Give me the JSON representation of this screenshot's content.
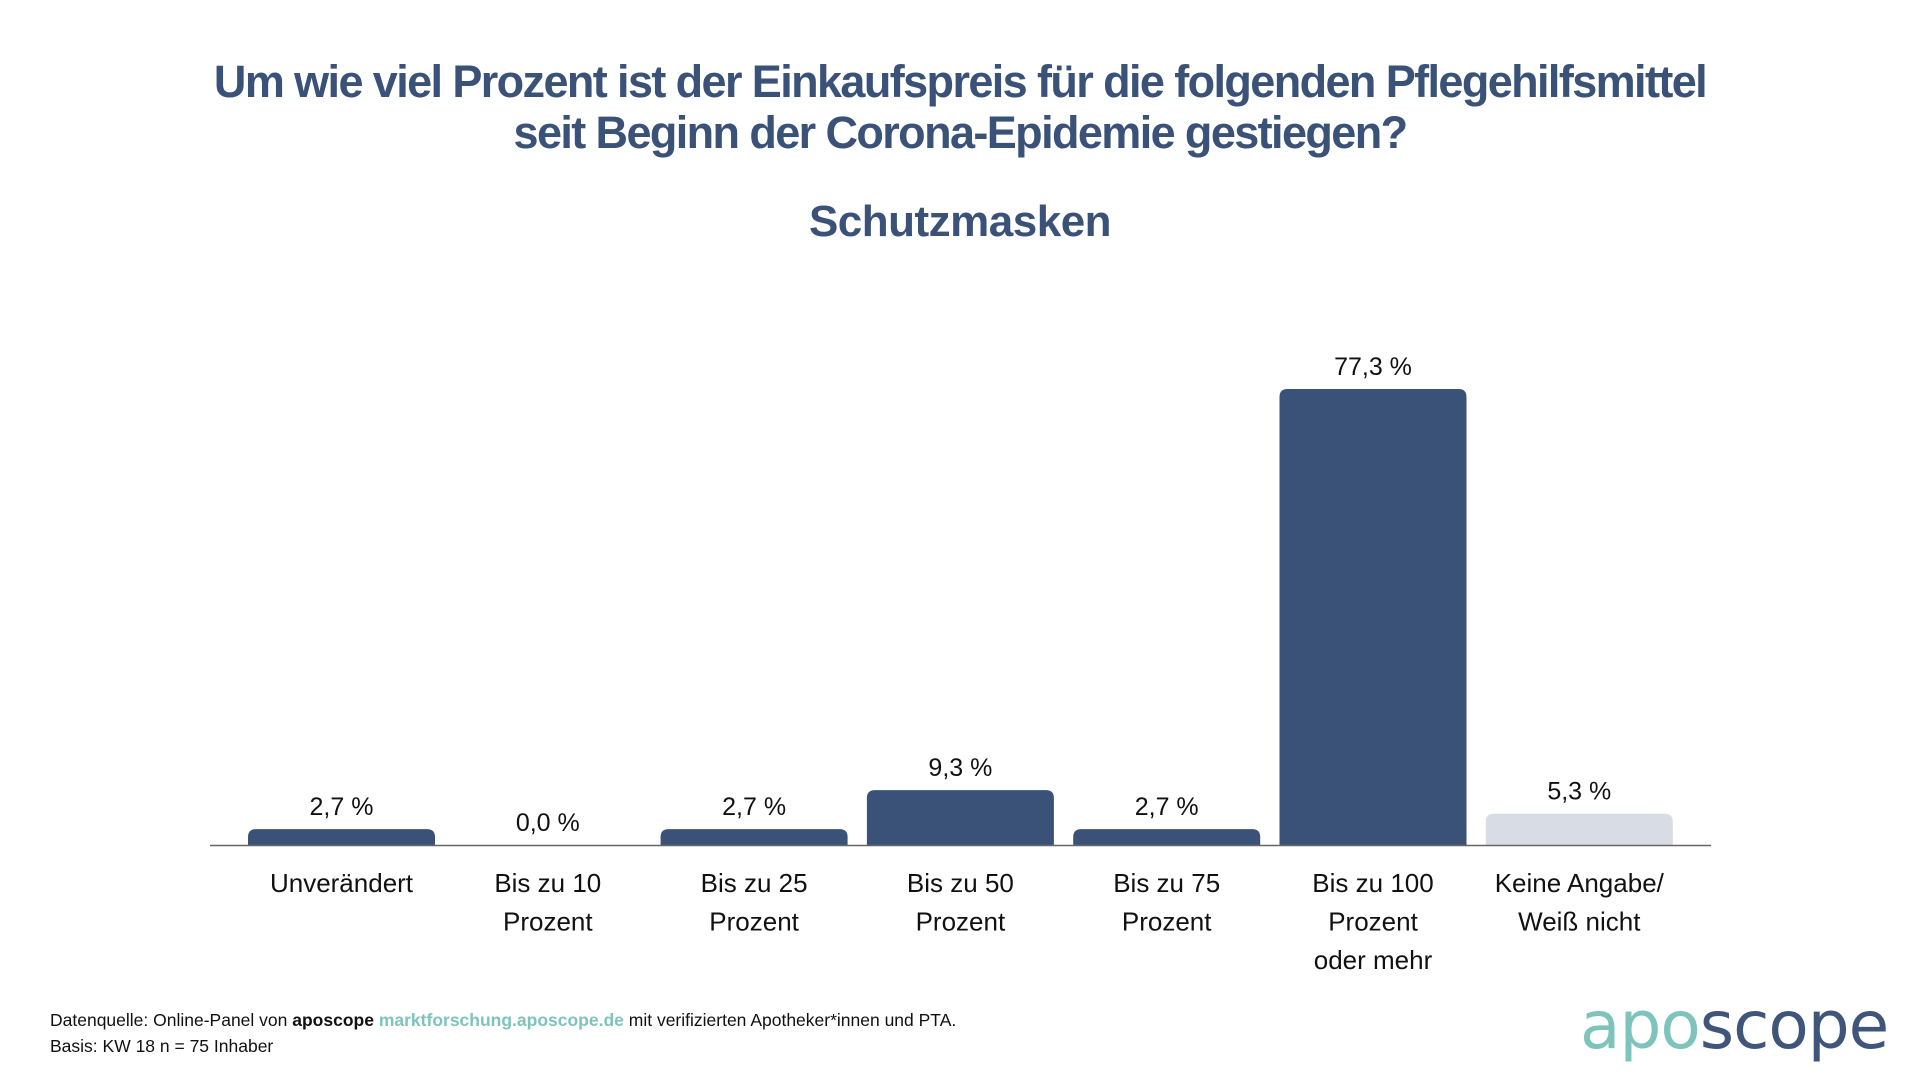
{
  "title_lines": [
    "Um wie viel Prozent ist der Einkaufspreis für die folgenden Pflegehilfsmittel",
    "seit Beginn der Corona-Epidemie gestiegen?"
  ],
  "subtitle": "Schutzmasken",
  "colors": {
    "primary": "#3a5277",
    "muted_bar": "#d8dce4",
    "accent_teal": "#7ec4bc",
    "axis": "#666666"
  },
  "chart_data": {
    "type": "bar",
    "title": "Um wie viel Prozent ist der Einkaufspreis für die folgenden Pflegehilfsmittel seit Beginn der Corona-Epidemie gestiegen?",
    "subtitle": "Schutzmasken",
    "xlabel": "",
    "ylabel": "",
    "ylim": [
      0,
      77.3
    ],
    "grid": false,
    "unit": "%",
    "categories": [
      [
        "Unverändert"
      ],
      [
        "Bis zu 10",
        "Prozent"
      ],
      [
        "Bis zu 25",
        "Prozent"
      ],
      [
        "Bis zu 50",
        "Prozent"
      ],
      [
        "Bis zu 75",
        "Prozent"
      ],
      [
        "Bis zu 100",
        "Prozent",
        "oder mehr"
      ],
      [
        "Keine Angabe/",
        "Weiß nicht"
      ]
    ],
    "values": [
      2.7,
      0.0,
      2.7,
      9.3,
      2.7,
      77.3,
      5.3
    ],
    "value_labels": [
      "2,7 %",
      "0,0 %",
      "2,7 %",
      "9,3 %",
      "2,7 %",
      "77,3 %",
      "5,3 %"
    ],
    "bar_styles": [
      "primary",
      "primary",
      "primary",
      "primary",
      "primary",
      "primary",
      "muted"
    ]
  },
  "footer": {
    "source_prefix": "Datenquelle: Online-Panel von ",
    "source_brand": "aposcope",
    "source_link": "marktforschung.aposcope.de",
    "source_suffix": " mit verifizierten Apotheker*innen und PTA.",
    "basis": "Basis: KW 18 n = 75 Inhaber"
  },
  "logo": {
    "part1": "apo",
    "part2": "scope"
  }
}
